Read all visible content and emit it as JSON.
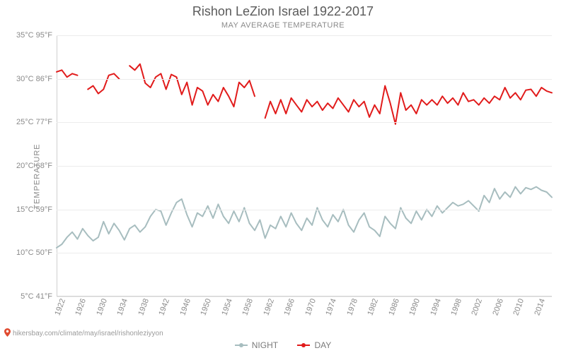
{
  "title": "Rishon LeZion Israel 1922-2017",
  "subtitle": "MAY AVERAGE TEMPERATURE",
  "ylabel": "TEMPERATURE",
  "footer_url": "hikersbay.com/climate/may/israel/rishonleziyyon",
  "legend": {
    "night": "NIGHT",
    "day": "DAY"
  },
  "chart": {
    "type": "line",
    "x_start": 1922,
    "x_end": 2017,
    "ylim_c": [
      5,
      35
    ],
    "y_ticks": [
      {
        "c": "5°C",
        "f": "41°F",
        "val": 5
      },
      {
        "c": "10°C",
        "f": "50°F",
        "val": 10
      },
      {
        "c": "15°C",
        "f": "59°F",
        "val": 15
      },
      {
        "c": "20°C",
        "f": "68°F",
        "val": 20
      },
      {
        "c": "25°C",
        "f": "77°F",
        "val": 25
      },
      {
        "c": "30°C",
        "f": "86°F",
        "val": 30
      },
      {
        "c": "35°C",
        "f": "95°F",
        "val": 35
      }
    ],
    "x_ticks": [
      1922,
      1926,
      1930,
      1934,
      1938,
      1942,
      1946,
      1950,
      1954,
      1958,
      1962,
      1966,
      1970,
      1974,
      1978,
      1982,
      1986,
      1990,
      1994,
      1998,
      2002,
      2006,
      2010,
      2014
    ],
    "background_color": "#ffffff",
    "grid_color": "#ececec",
    "axis_color": "#d0d0d0",
    "title_color": "#5a5a5a",
    "label_color": "#8a8a8a",
    "title_fontsize": 18,
    "tick_fontsize": 11,
    "line_width": 2,
    "series": {
      "day": {
        "color": "#e11b1b",
        "marker": "circle",
        "marker_size": 3,
        "segments": [
          [
            [
              1922,
              30.8
            ],
            [
              1923,
              31.0
            ],
            [
              1924,
              30.2
            ],
            [
              1925,
              30.6
            ],
            [
              1926,
              30.4
            ]
          ],
          [
            [
              1928,
              28.8
            ],
            [
              1929,
              29.2
            ],
            [
              1930,
              28.3
            ],
            [
              1931,
              28.8
            ],
            [
              1932,
              30.4
            ],
            [
              1933,
              30.6
            ],
            [
              1934,
              30.0
            ]
          ],
          [
            [
              1936,
              31.5
            ],
            [
              1937,
              31.0
            ],
            [
              1938,
              31.7
            ],
            [
              1939,
              29.5
            ],
            [
              1940,
              29.0
            ],
            [
              1941,
              30.2
            ],
            [
              1942,
              30.6
            ],
            [
              1943,
              28.8
            ],
            [
              1944,
              30.5
            ],
            [
              1945,
              30.2
            ],
            [
              1946,
              28.2
            ],
            [
              1947,
              29.6
            ],
            [
              1948,
              27.0
            ],
            [
              1949,
              29.0
            ],
            [
              1950,
              28.6
            ],
            [
              1951,
              27.0
            ],
            [
              1952,
              28.2
            ],
            [
              1953,
              27.4
            ],
            [
              1954,
              29.0
            ],
            [
              1955,
              28.0
            ],
            [
              1956,
              26.8
            ],
            [
              1957,
              29.6
            ],
            [
              1958,
              29.0
            ],
            [
              1959,
              29.8
            ],
            [
              1960,
              28.0
            ]
          ],
          [
            [
              1962,
              25.5
            ],
            [
              1963,
              27.4
            ],
            [
              1964,
              26.0
            ],
            [
              1965,
              27.6
            ],
            [
              1966,
              26.0
            ],
            [
              1967,
              27.8
            ],
            [
              1968,
              27.0
            ],
            [
              1969,
              26.2
            ],
            [
              1970,
              27.6
            ],
            [
              1971,
              26.8
            ],
            [
              1972,
              27.4
            ],
            [
              1973,
              26.4
            ],
            [
              1974,
              27.2
            ],
            [
              1975,
              26.6
            ],
            [
              1976,
              27.8
            ],
            [
              1977,
              27.0
            ],
            [
              1978,
              26.2
            ],
            [
              1979,
              27.6
            ],
            [
              1980,
              26.8
            ],
            [
              1981,
              27.4
            ],
            [
              1982,
              25.6
            ],
            [
              1983,
              27.0
            ],
            [
              1984,
              26.0
            ],
            [
              1985,
              29.2
            ],
            [
              1986,
              27.2
            ],
            [
              1987,
              24.8
            ],
            [
              1988,
              28.4
            ],
            [
              1989,
              26.4
            ],
            [
              1990,
              27.0
            ],
            [
              1991,
              26.0
            ],
            [
              1992,
              27.6
            ],
            [
              1993,
              27.0
            ],
            [
              1994,
              27.6
            ],
            [
              1995,
              27.0
            ],
            [
              1996,
              28.0
            ],
            [
              1997,
              27.2
            ],
            [
              1998,
              27.8
            ],
            [
              1999,
              27.0
            ],
            [
              2000,
              28.4
            ],
            [
              2001,
              27.4
            ],
            [
              2002,
              27.6
            ],
            [
              2003,
              27.0
            ],
            [
              2004,
              27.8
            ],
            [
              2005,
              27.2
            ],
            [
              2006,
              28.0
            ],
            [
              2007,
              27.6
            ],
            [
              2008,
              29.0
            ],
            [
              2009,
              27.8
            ],
            [
              2010,
              28.4
            ],
            [
              2011,
              27.6
            ],
            [
              2012,
              28.7
            ],
            [
              2013,
              28.8
            ],
            [
              2014,
              28.0
            ],
            [
              2015,
              29.0
            ],
            [
              2016,
              28.6
            ],
            [
              2017,
              28.4
            ]
          ]
        ]
      },
      "night": {
        "color": "#a7bdbf",
        "marker": "circle",
        "marker_size": 3,
        "segments": [
          [
            [
              1922,
              10.6
            ],
            [
              1923,
              11.0
            ],
            [
              1924,
              11.8
            ],
            [
              1925,
              12.4
            ],
            [
              1926,
              11.6
            ],
            [
              1927,
              12.8
            ],
            [
              1928,
              12.0
            ],
            [
              1929,
              11.4
            ],
            [
              1930,
              11.8
            ],
            [
              1931,
              13.6
            ],
            [
              1932,
              12.2
            ],
            [
              1933,
              13.4
            ],
            [
              1934,
              12.6
            ],
            [
              1935,
              11.5
            ],
            [
              1936,
              12.8
            ],
            [
              1937,
              13.2
            ],
            [
              1938,
              12.4
            ],
            [
              1939,
              13.0
            ],
            [
              1940,
              14.2
            ],
            [
              1941,
              15.0
            ],
            [
              1942,
              14.8
            ],
            [
              1943,
              13.2
            ],
            [
              1944,
              14.6
            ],
            [
              1945,
              15.8
            ],
            [
              1946,
              16.2
            ],
            [
              1947,
              14.4
            ],
            [
              1948,
              13.0
            ],
            [
              1949,
              14.6
            ],
            [
              1950,
              14.2
            ],
            [
              1951,
              15.4
            ],
            [
              1952,
              14.0
            ],
            [
              1953,
              15.6
            ],
            [
              1954,
              14.2
            ],
            [
              1955,
              13.4
            ],
            [
              1956,
              14.8
            ],
            [
              1957,
              13.6
            ],
            [
              1958,
              15.2
            ],
            [
              1959,
              13.4
            ],
            [
              1960,
              12.6
            ],
            [
              1961,
              13.8
            ],
            [
              1962,
              11.7
            ],
            [
              1963,
              13.2
            ],
            [
              1964,
              12.8
            ],
            [
              1965,
              14.2
            ],
            [
              1966,
              13.0
            ],
            [
              1967,
              14.6
            ],
            [
              1968,
              13.4
            ],
            [
              1969,
              12.6
            ],
            [
              1970,
              14.0
            ],
            [
              1971,
              13.2
            ],
            [
              1972,
              15.2
            ],
            [
              1973,
              13.8
            ],
            [
              1974,
              13.0
            ],
            [
              1975,
              14.4
            ],
            [
              1976,
              13.6
            ],
            [
              1977,
              15.0
            ],
            [
              1978,
              13.2
            ],
            [
              1979,
              12.4
            ],
            [
              1980,
              13.8
            ],
            [
              1981,
              14.6
            ],
            [
              1982,
              13.0
            ],
            [
              1983,
              12.6
            ],
            [
              1984,
              11.9
            ],
            [
              1985,
              14.2
            ],
            [
              1986,
              13.4
            ],
            [
              1987,
              12.8
            ],
            [
              1988,
              15.2
            ],
            [
              1989,
              14.0
            ],
            [
              1990,
              13.4
            ],
            [
              1991,
              14.8
            ],
            [
              1992,
              13.8
            ],
            [
              1993,
              15.0
            ],
            [
              1994,
              14.2
            ],
            [
              1995,
              15.4
            ],
            [
              1996,
              14.6
            ],
            [
              1997,
              15.2
            ],
            [
              1998,
              15.8
            ],
            [
              1999,
              15.4
            ],
            [
              2000,
              15.6
            ],
            [
              2001,
              16.0
            ],
            [
              2002,
              15.4
            ],
            [
              2003,
              14.8
            ],
            [
              2004,
              16.6
            ],
            [
              2005,
              15.8
            ],
            [
              2006,
              17.4
            ],
            [
              2007,
              16.2
            ],
            [
              2008,
              17.0
            ],
            [
              2009,
              16.4
            ],
            [
              2010,
              17.6
            ],
            [
              2011,
              16.8
            ],
            [
              2012,
              17.5
            ],
            [
              2013,
              17.3
            ],
            [
              2014,
              17.6
            ],
            [
              2015,
              17.2
            ],
            [
              2016,
              17.0
            ],
            [
              2017,
              16.4
            ]
          ]
        ]
      }
    }
  }
}
